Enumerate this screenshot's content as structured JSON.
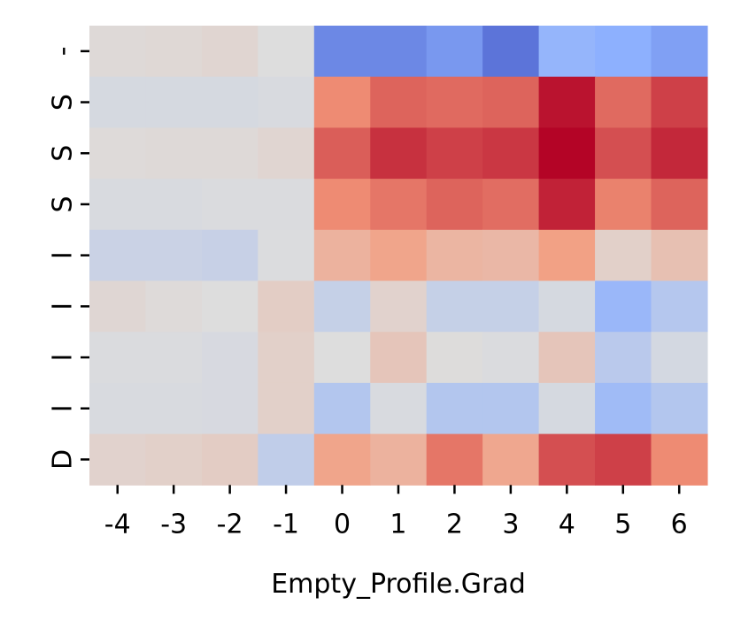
{
  "chart_data": {
    "type": "heatmap",
    "title": "",
    "xlabel": "Empty_Profile.Grad",
    "ylabel": "",
    "x_categories": [
      "-4",
      "-3",
      "-2",
      "-1",
      "0",
      "1",
      "2",
      "3",
      "4",
      "5",
      "6"
    ],
    "y_categories": [
      "-",
      "S",
      "S",
      "S",
      "I",
      "I",
      "I",
      "I",
      "D"
    ],
    "colormap": "coolwarm",
    "vmin": -1,
    "vmax": 1,
    "colorbar": false,
    "grid": false,
    "values": [
      [
        0.03,
        0.04,
        0.06,
        0.0,
        -0.7,
        -0.7,
        -0.62,
        -0.8,
        -0.45,
        -0.5,
        -0.58
      ],
      [
        -0.05,
        -0.05,
        -0.05,
        -0.03,
        0.55,
        0.68,
        0.66,
        0.68,
        0.95,
        0.66,
        0.8
      ],
      [
        0.02,
        0.03,
        0.03,
        0.06,
        0.7,
        0.85,
        0.8,
        0.83,
        1.0,
        0.75,
        0.88
      ],
      [
        -0.03,
        -0.03,
        -0.02,
        -0.02,
        0.55,
        0.62,
        0.68,
        0.65,
        0.9,
        0.58,
        0.68
      ],
      [
        -0.12,
        -0.12,
        -0.14,
        -0.01,
        0.32,
        0.42,
        0.3,
        0.28,
        0.45,
        0.1,
        0.22
      ],
      [
        0.05,
        0.02,
        0.0,
        0.12,
        -0.15,
        0.08,
        -0.15,
        -0.15,
        -0.05,
        -0.42,
        -0.25
      ],
      [
        -0.02,
        -0.02,
        -0.04,
        0.1,
        0.0,
        0.18,
        0.01,
        -0.02,
        0.18,
        -0.22,
        -0.06
      ],
      [
        -0.03,
        -0.03,
        -0.04,
        0.1,
        -0.26,
        -0.03,
        -0.26,
        -0.26,
        -0.05,
        -0.38,
        -0.26
      ],
      [
        0.08,
        0.1,
        0.13,
        -0.18,
        0.42,
        0.32,
        0.62,
        0.4,
        0.75,
        0.8,
        0.55
      ]
    ]
  }
}
